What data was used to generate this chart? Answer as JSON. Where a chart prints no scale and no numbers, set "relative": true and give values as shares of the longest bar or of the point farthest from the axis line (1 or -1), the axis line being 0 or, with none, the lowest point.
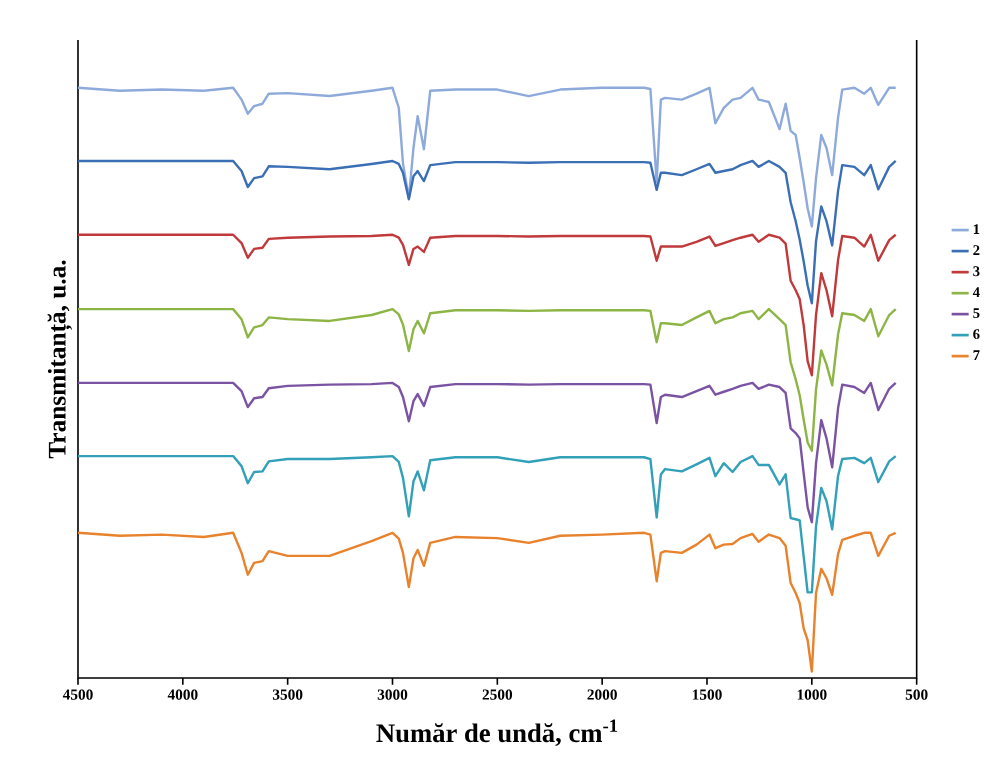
{
  "chart_data": {
    "type": "line",
    "relative": true,
    "xlabel": "Număr de undă, cm$^{-1}$",
    "ylabel": "Transmitanță, u.a.",
    "xlim": [
      4500,
      500
    ],
    "xticks": [
      4500,
      4000,
      3500,
      3000,
      2500,
      2000,
      1500,
      1000,
      500
    ],
    "legend": "right",
    "marker": "none",
    "line_style": "solid",
    "x": [
      4500,
      4300,
      4100,
      3900,
      3760,
      3720,
      3690,
      3660,
      3620,
      3590,
      3500,
      3300,
      3100,
      3000,
      2970,
      2950,
      2922,
      2900,
      2880,
      2850,
      2820,
      2700,
      2500,
      2350,
      2200,
      2000,
      1800,
      1770,
      1740,
      1720,
      1700,
      1620,
      1550,
      1488,
      1460,
      1420,
      1378,
      1340,
      1283,
      1254,
      1205,
      1154,
      1125,
      1101,
      1077,
      1058,
      1039,
      1020,
      1000,
      980,
      955,
      930,
      903,
      875,
      855,
      797,
      750,
      719,
      683,
      631,
      600
    ],
    "series": [
      {
        "name": "1",
        "color": "#8eaadb",
        "values": [
          1.0,
          0.995,
          0.997,
          0.995,
          1.0,
          0.98,
          0.956,
          0.969,
          0.973,
          0.99,
          0.991,
          0.986,
          0.995,
          1.0,
          0.966,
          0.872,
          0.813,
          0.898,
          0.952,
          0.896,
          0.995,
          0.997,
          0.997,
          0.986,
          0.997,
          1.0,
          1.0,
          0.998,
          0.84,
          0.98,
          0.983,
          0.98,
          0.99,
          1.0,
          0.94,
          0.966,
          0.98,
          0.983,
          1.0,
          0.98,
          0.976,
          0.93,
          0.973,
          0.927,
          0.92,
          0.881,
          0.84,
          0.796,
          0.765,
          0.847,
          0.92,
          0.898,
          0.852,
          0.949,
          0.997,
          1.0,
          0.99,
          1.0,
          0.971,
          1.0,
          1.0
        ]
      },
      {
        "name": "2",
        "color": "#3a6fb5",
        "values": [
          0.876,
          0.876,
          0.876,
          0.876,
          0.876,
          0.859,
          0.832,
          0.847,
          0.85,
          0.867,
          0.866,
          0.862,
          0.871,
          0.876,
          0.871,
          0.856,
          0.811,
          0.85,
          0.859,
          0.842,
          0.869,
          0.874,
          0.874,
          0.873,
          0.874,
          0.874,
          0.874,
          0.873,
          0.827,
          0.856,
          0.856,
          0.852,
          0.862,
          0.871,
          0.856,
          0.859,
          0.862,
          0.869,
          0.876,
          0.866,
          0.876,
          0.866,
          0.856,
          0.806,
          0.774,
          0.743,
          0.706,
          0.665,
          0.635,
          0.74,
          0.799,
          0.774,
          0.733,
          0.825,
          0.869,
          0.866,
          0.852,
          0.869,
          0.828,
          0.866,
          0.876
        ]
      },
      {
        "name": "3",
        "color": "#c0393b",
        "values": [
          0.751,
          0.751,
          0.751,
          0.751,
          0.751,
          0.737,
          0.712,
          0.727,
          0.729,
          0.744,
          0.746,
          0.748,
          0.749,
          0.751,
          0.746,
          0.734,
          0.7,
          0.727,
          0.731,
          0.722,
          0.746,
          0.749,
          0.749,
          0.748,
          0.749,
          0.749,
          0.749,
          0.748,
          0.707,
          0.731,
          0.731,
          0.731,
          0.739,
          0.748,
          0.732,
          0.737,
          0.742,
          0.746,
          0.751,
          0.739,
          0.751,
          0.746,
          0.736,
          0.673,
          0.657,
          0.642,
          0.598,
          0.537,
          0.513,
          0.615,
          0.686,
          0.657,
          0.613,
          0.708,
          0.749,
          0.746,
          0.731,
          0.751,
          0.707,
          0.742,
          0.751
        ]
      },
      {
        "name": "4",
        "color": "#8db545",
        "values": [
          0.625,
          0.625,
          0.625,
          0.625,
          0.625,
          0.608,
          0.577,
          0.594,
          0.598,
          0.611,
          0.608,
          0.605,
          0.615,
          0.625,
          0.616,
          0.599,
          0.554,
          0.591,
          0.605,
          0.584,
          0.618,
          0.623,
          0.623,
          0.622,
          0.623,
          0.623,
          0.623,
          0.622,
          0.569,
          0.601,
          0.601,
          0.598,
          0.611,
          0.622,
          0.601,
          0.608,
          0.611,
          0.618,
          0.622,
          0.608,
          0.625,
          0.608,
          0.598,
          0.535,
          0.506,
          0.479,
          0.438,
          0.399,
          0.385,
          0.489,
          0.555,
          0.531,
          0.496,
          0.582,
          0.618,
          0.615,
          0.605,
          0.625,
          0.579,
          0.615,
          0.625
        ]
      },
      {
        "name": "5",
        "color": "#7b53a3",
        "values": [
          0.5,
          0.5,
          0.5,
          0.5,
          0.5,
          0.486,
          0.459,
          0.474,
          0.476,
          0.491,
          0.495,
          0.497,
          0.498,
          0.5,
          0.493,
          0.476,
          0.435,
          0.469,
          0.481,
          0.461,
          0.493,
          0.498,
          0.498,
          0.497,
          0.498,
          0.498,
          0.498,
          0.497,
          0.432,
          0.476,
          0.48,
          0.476,
          0.486,
          0.495,
          0.48,
          0.485,
          0.49,
          0.495,
          0.5,
          0.49,
          0.497,
          0.493,
          0.483,
          0.423,
          0.415,
          0.406,
          0.347,
          0.289,
          0.264,
          0.364,
          0.437,
          0.406,
          0.357,
          0.457,
          0.497,
          0.493,
          0.483,
          0.5,
          0.454,
          0.49,
          0.5
        ]
      },
      {
        "name": "6",
        "color": "#31a0b8",
        "values": [
          0.376,
          0.376,
          0.376,
          0.376,
          0.376,
          0.359,
          0.33,
          0.349,
          0.35,
          0.367,
          0.371,
          0.371,
          0.374,
          0.376,
          0.366,
          0.339,
          0.274,
          0.333,
          0.35,
          0.318,
          0.369,
          0.374,
          0.374,
          0.366,
          0.374,
          0.374,
          0.374,
          0.371,
          0.272,
          0.345,
          0.354,
          0.35,
          0.362,
          0.373,
          0.342,
          0.364,
          0.349,
          0.366,
          0.376,
          0.361,
          0.361,
          0.328,
          0.345,
          0.271,
          0.269,
          0.267,
          0.206,
          0.145,
          0.145,
          0.257,
          0.322,
          0.3,
          0.252,
          0.342,
          0.371,
          0.373,
          0.364,
          0.373,
          0.332,
          0.367,
          0.376
        ]
      },
      {
        "name": "7",
        "color": "#e8822d",
        "values": [
          0.246,
          0.241,
          0.243,
          0.239,
          0.246,
          0.212,
          0.175,
          0.195,
          0.198,
          0.215,
          0.207,
          0.207,
          0.232,
          0.246,
          0.236,
          0.212,
          0.154,
          0.203,
          0.217,
          0.19,
          0.229,
          0.239,
          0.237,
          0.229,
          0.241,
          0.243,
          0.246,
          0.243,
          0.164,
          0.212,
          0.215,
          0.212,
          0.226,
          0.243,
          0.22,
          0.226,
          0.227,
          0.237,
          0.244,
          0.231,
          0.243,
          0.237,
          0.224,
          0.161,
          0.144,
          0.127,
          0.084,
          0.064,
          0.011,
          0.144,
          0.185,
          0.169,
          0.141,
          0.21,
          0.234,
          0.241,
          0.246,
          0.246,
          0.207,
          0.241,
          0.246
        ]
      }
    ]
  }
}
